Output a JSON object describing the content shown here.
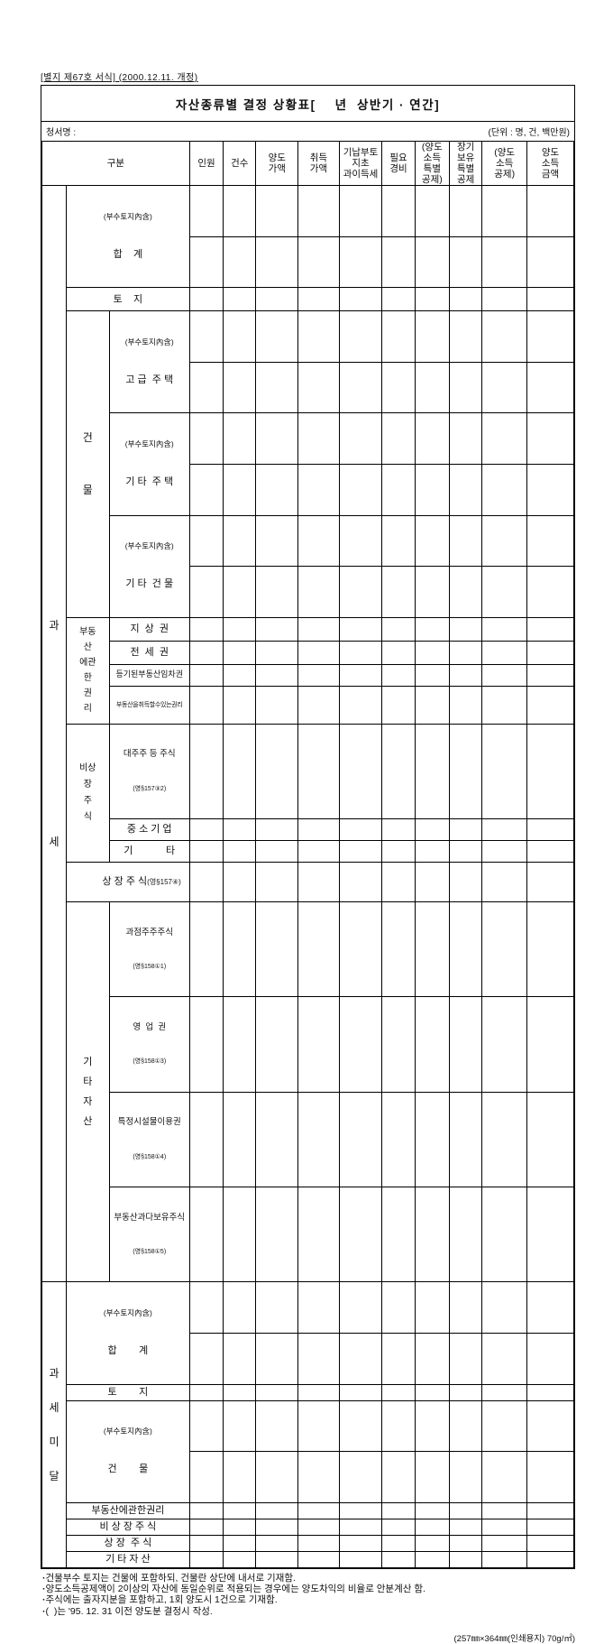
{
  "doc": {
    "form_ref": "[별지 제67호 서식] (2000.12.11. 개정)",
    "title": "자산종류별 결정 상황표[    년  상반기 · 연간]",
    "office_label": "청서명 :",
    "unit_note": "(단위 : 명, 건, 백만원)",
    "paper_note": "(257㎜×364㎜(인쇄용지) 70g/㎡)"
  },
  "footnotes": [
    "건물부수 토지는 건물에 포함하되, 건물란 상단에 내서로 기재함.",
    "양도소득공제액이 2이상의 자산에 동일순위로 적용되는 경우에는 양도차익의 비율로 안분계산 함.",
    "주식에는 출자지분을 포함하고, 1회 양도시 1건으로 기재함.",
    "(  )는 '95. 12. 31 이전 양도분 결정시 작성."
  ],
  "table": {
    "headers": [
      "구분",
      "인원",
      "건수",
      "양도\n가액",
      "취득\n가액",
      "기납부토\n지초\n과이득세",
      "필요\n경비",
      "(양도\n소득\n특별\n공제)",
      "장기\n보유\n특별\n공제",
      "(양도\n소득\n공제)",
      "양도\n소득\n금액"
    ],
    "taxed": {
      "section_label": "과\n세",
      "rows": {
        "total": {
          "paren": "(부수토지內含)",
          "name": "합    계"
        },
        "land": "토    지",
        "building_group": "건\n물",
        "luxury_house": {
          "paren": "(부수토지內含)",
          "name": "고 급  주 택"
        },
        "other_house": {
          "paren": "(부수토지內含)",
          "name": "기 타  주 택"
        },
        "other_building": {
          "paren": "(부수토지內含)",
          "name": "기 타  건 물"
        },
        "realty_rights_group": "부동\n산\n에관\n한\n권\n리",
        "surface_right": "지  상  권",
        "jeonse_right": "전  세  권",
        "registered_lease": "등기된부동산임차권",
        "right_to_acquire": "부동산을취득할수있는권리",
        "unlisted_group": "비상\n장\n주\n식",
        "major_shareholder": {
          "name": "대주주 등 주식",
          "ref": "(영§157③2)"
        },
        "sme": "중 소 기 업",
        "etc": "기            타",
        "listed_stock": {
          "name": "상 장 주 식",
          "ref": "(영§157④)"
        },
        "other_assets_group": "기\n타\n자\n산",
        "oligopoly_stock": {
          "name": "과점주주주식",
          "ref": "(영§158①1)"
        },
        "goodwill": {
          "name": "영  업  권",
          "ref": "(영§158①3)"
        },
        "facility_right": {
          "name": "특정시설물이용권",
          "ref": "(영§158①4)"
        },
        "realty_heavy_stock": {
          "name": "부동산과다보유주식",
          "ref": "(영§158①5)"
        }
      }
    },
    "under_threshold": {
      "section_label": "과\n세\n미\n달",
      "rows": {
        "total": {
          "paren": "(부수토지內含)",
          "name": "합        계"
        },
        "land": "토        지",
        "building": {
          "paren": "(부수토지內含)",
          "name": "건        물"
        },
        "realty_rights": "부동산에관한권리",
        "unlisted_stock": "비 상 장 주 식",
        "listed_stock": "상 장  주 식",
        "other_assets": "기 타 자 산"
      }
    }
  }
}
